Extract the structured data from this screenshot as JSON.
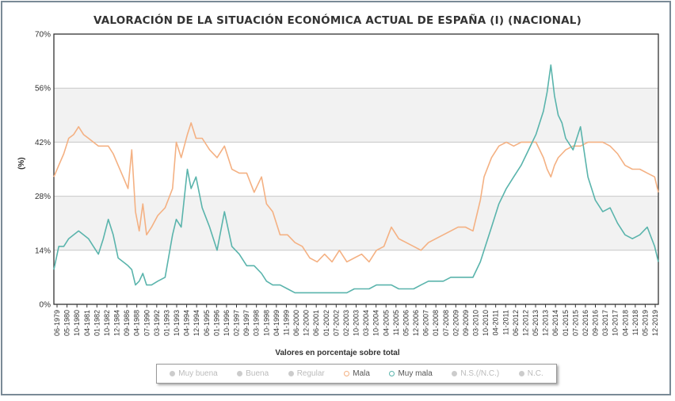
{
  "chart_data": {
    "type": "line",
    "title": "VALORACIÓN DE LA SITUACIÓN ECONÓMICA ACTUAL DE ESPAÑA (I) (NACIONAL)",
    "xlabel": "Valores en porcentaje sobre total",
    "ylabel": "(%)",
    "ylim": [
      0,
      70
    ],
    "yticks": [
      "0%",
      "14%",
      "28%",
      "42%",
      "56%",
      "70%"
    ],
    "grid": true,
    "legend_position": "bottom",
    "xlim": [
      "1979-06",
      "2020-03"
    ],
    "x_tick_labels": [
      "06-1979",
      "05-1980",
      "10-1980",
      "04-1981",
      "01-1982",
      "10-1982",
      "12-1984",
      "09-1986",
      "04-1988",
      "07-1990",
      "03-1992",
      "01-1993",
      "10-1993",
      "04-1994",
      "12-1994",
      "06-1995",
      "01-1996",
      "10-1996",
      "02-1997",
      "09-1997",
      "03-1998",
      "10-1998",
      "04-1999",
      "11-1999",
      "06-2000",
      "12-2000",
      "06-2001",
      "01-2002",
      "07-2002",
      "02-2003",
      "10-2003",
      "03-2004",
      "10-2004",
      "04-2005",
      "11-2005",
      "05-2006",
      "12-2006",
      "06-2007",
      "01-2008",
      "07-2008",
      "02-2009",
      "09-2009",
      "03-2010",
      "10-2010",
      "04-2011",
      "11-2011",
      "06-2012",
      "12-2012",
      "05-2013",
      "12-2013",
      "06-2014",
      "01-2015",
      "07-2015",
      "02-2016",
      "09-2016",
      "03-2017",
      "10-2017",
      "04-2018",
      "11-2018",
      "05-2019",
      "12-2019"
    ],
    "series": [
      {
        "name": "Mala",
        "color": "#f4b183",
        "points": [
          [
            "1979-06",
            33
          ],
          [
            "1979-10",
            36
          ],
          [
            "1980-02",
            39
          ],
          [
            "1980-06",
            43
          ],
          [
            "1980-10",
            44
          ],
          [
            "1981-02",
            46
          ],
          [
            "1981-06",
            44
          ],
          [
            "1981-10",
            43
          ],
          [
            "1982-02",
            42
          ],
          [
            "1982-06",
            41
          ],
          [
            "1982-10",
            41
          ],
          [
            "1983-02",
            41
          ],
          [
            "1983-06",
            39
          ],
          [
            "1983-10",
            36
          ],
          [
            "1984-02",
            33
          ],
          [
            "1984-06",
            30
          ],
          [
            "1984-09",
            40
          ],
          [
            "1984-12",
            24
          ],
          [
            "1985-03",
            19
          ],
          [
            "1985-06",
            26
          ],
          [
            "1985-09",
            18
          ],
          [
            "1986-01",
            20
          ],
          [
            "1986-06",
            23
          ],
          [
            "1986-12",
            25
          ],
          [
            "1987-06",
            30
          ],
          [
            "1987-09",
            42
          ],
          [
            "1988-01",
            38
          ],
          [
            "1988-06",
            44
          ],
          [
            "1988-09",
            47
          ],
          [
            "1989-01",
            43
          ],
          [
            "1989-06",
            43
          ],
          [
            "1989-12",
            40
          ],
          [
            "1990-06",
            38
          ],
          [
            "1990-12",
            41
          ],
          [
            "1991-06",
            35
          ],
          [
            "1991-12",
            34
          ],
          [
            "1992-06",
            34
          ],
          [
            "1992-12",
            29
          ],
          [
            "1993-06",
            33
          ],
          [
            "1993-10",
            26
          ],
          [
            "1994-03",
            24
          ],
          [
            "1994-09",
            18
          ],
          [
            "1995-03",
            18
          ],
          [
            "1995-09",
            16
          ],
          [
            "1996-03",
            15
          ],
          [
            "1996-09",
            12
          ],
          [
            "1997-03",
            11
          ],
          [
            "1997-09",
            13
          ],
          [
            "1998-03",
            11
          ],
          [
            "1998-09",
            14
          ],
          [
            "1999-03",
            11
          ],
          [
            "1999-09",
            12
          ],
          [
            "2000-03",
            13
          ],
          [
            "2000-09",
            11
          ],
          [
            "2001-03",
            14
          ],
          [
            "2001-09",
            15
          ],
          [
            "2002-03",
            20
          ],
          [
            "2002-09",
            17
          ],
          [
            "2003-03",
            16
          ],
          [
            "2003-09",
            15
          ],
          [
            "2004-03",
            14
          ],
          [
            "2004-09",
            16
          ],
          [
            "2005-03",
            17
          ],
          [
            "2005-09",
            18
          ],
          [
            "2006-03",
            19
          ],
          [
            "2006-09",
            20
          ],
          [
            "2007-03",
            20
          ],
          [
            "2007-09",
            19
          ],
          [
            "2008-03",
            27
          ],
          [
            "2008-06",
            33
          ],
          [
            "2008-12",
            38
          ],
          [
            "2009-06",
            41
          ],
          [
            "2009-12",
            42
          ],
          [
            "2010-06",
            41
          ],
          [
            "2010-12",
            42
          ],
          [
            "2011-06",
            42
          ],
          [
            "2011-12",
            42
          ],
          [
            "2012-03",
            40
          ],
          [
            "2012-06",
            38
          ],
          [
            "2012-09",
            35
          ],
          [
            "2012-12",
            33
          ],
          [
            "2013-03",
            36
          ],
          [
            "2013-06",
            38
          ],
          [
            "2013-09",
            39
          ],
          [
            "2013-12",
            40
          ],
          [
            "2014-06",
            41
          ],
          [
            "2014-12",
            41
          ],
          [
            "2015-06",
            42
          ],
          [
            "2015-12",
            42
          ],
          [
            "2016-06",
            42
          ],
          [
            "2016-12",
            41
          ],
          [
            "2017-06",
            39
          ],
          [
            "2017-12",
            36
          ],
          [
            "2018-06",
            35
          ],
          [
            "2018-12",
            35
          ],
          [
            "2019-06",
            34
          ],
          [
            "2019-12",
            33
          ],
          [
            "2020-03",
            29
          ]
        ]
      },
      {
        "name": "Muy mala",
        "color": "#5ab4ac",
        "points": [
          [
            "1979-06",
            9
          ],
          [
            "1979-10",
            15
          ],
          [
            "1980-02",
            15
          ],
          [
            "1980-06",
            17
          ],
          [
            "1980-10",
            18
          ],
          [
            "1981-02",
            19
          ],
          [
            "1981-06",
            18
          ],
          [
            "1981-10",
            17
          ],
          [
            "1982-02",
            15
          ],
          [
            "1982-06",
            13
          ],
          [
            "1982-10",
            17
          ],
          [
            "1983-02",
            22
          ],
          [
            "1983-06",
            18
          ],
          [
            "1983-10",
            12
          ],
          [
            "1984-02",
            11
          ],
          [
            "1984-06",
            10
          ],
          [
            "1984-09",
            9
          ],
          [
            "1984-12",
            5
          ],
          [
            "1985-03",
            6
          ],
          [
            "1985-06",
            8
          ],
          [
            "1985-09",
            5
          ],
          [
            "1986-01",
            5
          ],
          [
            "1986-06",
            6
          ],
          [
            "1986-12",
            7
          ],
          [
            "1987-06",
            18
          ],
          [
            "1987-09",
            22
          ],
          [
            "1988-01",
            20
          ],
          [
            "1988-06",
            35
          ],
          [
            "1988-09",
            30
          ],
          [
            "1989-01",
            33
          ],
          [
            "1989-06",
            25
          ],
          [
            "1989-12",
            20
          ],
          [
            "1990-06",
            14
          ],
          [
            "1990-12",
            24
          ],
          [
            "1991-06",
            15
          ],
          [
            "1991-12",
            13
          ],
          [
            "1992-06",
            10
          ],
          [
            "1992-12",
            10
          ],
          [
            "1993-06",
            8
          ],
          [
            "1993-10",
            6
          ],
          [
            "1994-03",
            5
          ],
          [
            "1994-09",
            5
          ],
          [
            "1995-03",
            4
          ],
          [
            "1995-09",
            3
          ],
          [
            "1996-03",
            3
          ],
          [
            "1996-09",
            3
          ],
          [
            "1997-03",
            3
          ],
          [
            "1997-09",
            3
          ],
          [
            "1998-03",
            3
          ],
          [
            "1998-09",
            3
          ],
          [
            "1999-03",
            3
          ],
          [
            "1999-09",
            4
          ],
          [
            "2000-03",
            4
          ],
          [
            "2000-09",
            4
          ],
          [
            "2001-03",
            5
          ],
          [
            "2001-09",
            5
          ],
          [
            "2002-03",
            5
          ],
          [
            "2002-09",
            4
          ],
          [
            "2003-03",
            4
          ],
          [
            "2003-09",
            4
          ],
          [
            "2004-03",
            5
          ],
          [
            "2004-09",
            6
          ],
          [
            "2005-03",
            6
          ],
          [
            "2005-09",
            6
          ],
          [
            "2006-03",
            7
          ],
          [
            "2006-09",
            7
          ],
          [
            "2007-03",
            7
          ],
          [
            "2007-09",
            7
          ],
          [
            "2008-03",
            11
          ],
          [
            "2008-06",
            14
          ],
          [
            "2008-12",
            20
          ],
          [
            "2009-06",
            26
          ],
          [
            "2009-12",
            30
          ],
          [
            "2010-06",
            33
          ],
          [
            "2010-12",
            36
          ],
          [
            "2011-06",
            40
          ],
          [
            "2011-12",
            44
          ],
          [
            "2012-03",
            47
          ],
          [
            "2012-06",
            50
          ],
          [
            "2012-09",
            55
          ],
          [
            "2012-12",
            62
          ],
          [
            "2013-03",
            54
          ],
          [
            "2013-06",
            49
          ],
          [
            "2013-09",
            47
          ],
          [
            "2013-12",
            43
          ],
          [
            "2014-06",
            40
          ],
          [
            "2014-12",
            46
          ],
          [
            "2015-06",
            33
          ],
          [
            "2015-12",
            27
          ],
          [
            "2016-06",
            24
          ],
          [
            "2016-12",
            25
          ],
          [
            "2017-06",
            21
          ],
          [
            "2017-12",
            18
          ],
          [
            "2018-06",
            17
          ],
          [
            "2018-12",
            18
          ],
          [
            "2019-06",
            20
          ],
          [
            "2019-12",
            15
          ],
          [
            "2020-03",
            11
          ]
        ]
      }
    ],
    "legend": [
      {
        "label": "Muy buena",
        "active": false
      },
      {
        "label": "Buena",
        "active": false
      },
      {
        "label": "Regular",
        "active": false
      },
      {
        "label": "Mala",
        "active": true,
        "color": "#f4b183"
      },
      {
        "label": "Muy mala",
        "active": true,
        "color": "#5ab4ac"
      },
      {
        "label": "N.S.(/N.C.)",
        "active": false
      },
      {
        "label": "N.C.",
        "active": false
      }
    ]
  }
}
